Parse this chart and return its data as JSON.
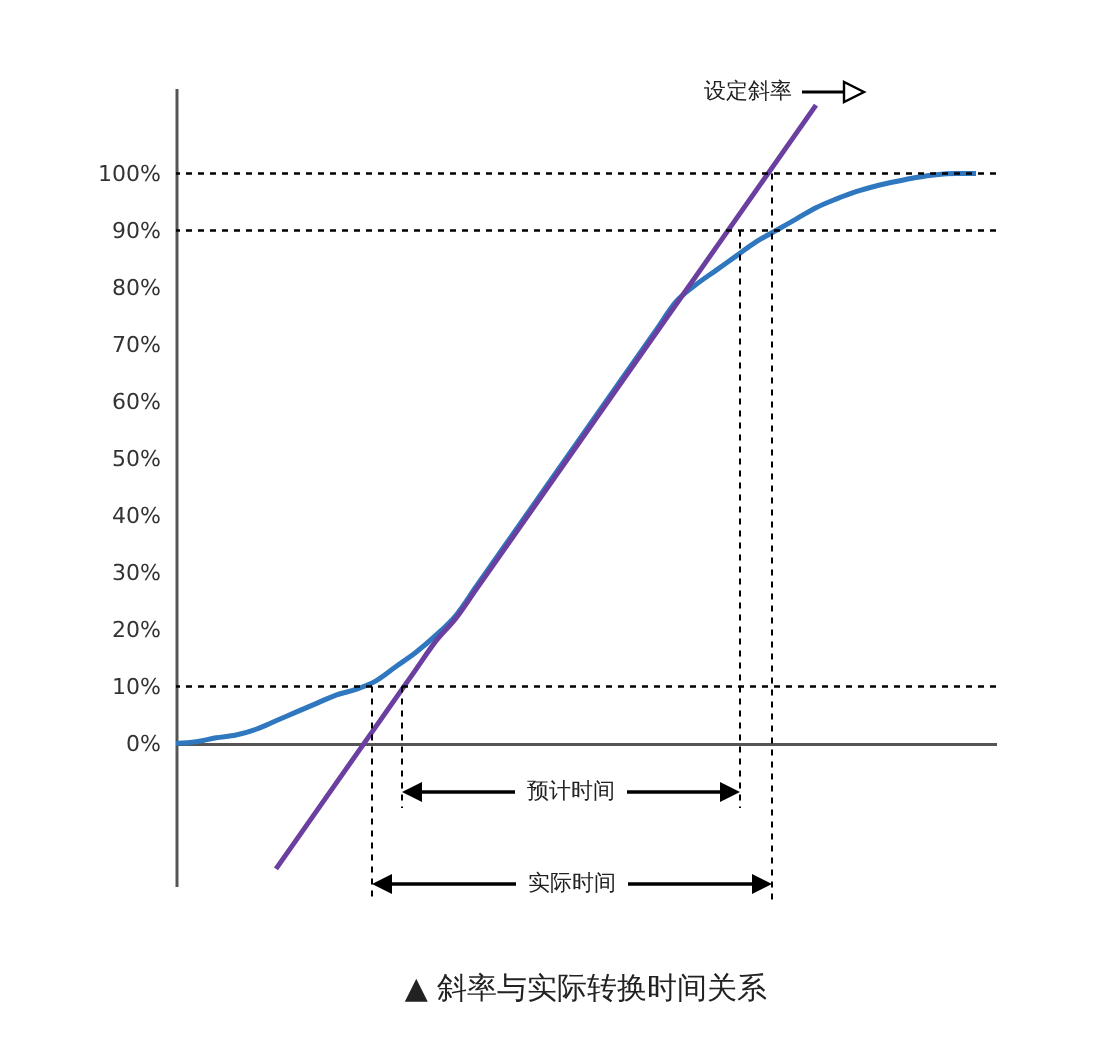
{
  "chart_data": {
    "type": "line",
    "title": "▲ 斜率与实际转换时间关系",
    "categories": [
      null,
      null,
      null,
      null,
      null,
      null,
      null,
      null,
      null,
      null,
      null,
      null,
      null,
      null,
      null,
      null,
      null,
      null,
      null,
      null,
      null,
      null,
      null,
      null,
      null,
      null,
      null,
      null,
      null,
      null,
      null,
      null,
      null,
      null,
      null,
      null,
      null,
      null,
      null,
      null,
      null
    ],
    "series": [
      {
        "color": "#2f77bf",
        "values": [
          0,
          0.3,
          1,
          1.5,
          2.5,
          4,
          5.5,
          7,
          8.5,
          9.5,
          11,
          13.5,
          16,
          19,
          22.5,
          27.5,
          32.5,
          37.5,
          42.5,
          47.5,
          52.5,
          57.5,
          62.5,
          67.5,
          72.5,
          77.5,
          80.5,
          83,
          85.5,
          88,
          90,
          92,
          94,
          95.5,
          96.8,
          97.8,
          98.6,
          99.3,
          99.8,
          100,
          100
        ]
      },
      {
        "color": "#6a3fa0",
        "values": [
          null,
          null,
          null,
          null,
          null,
          -22,
          -17,
          -12,
          -7,
          -2,
          3,
          8,
          13,
          18,
          22,
          27,
          32,
          37,
          42,
          47,
          52,
          57,
          62,
          67,
          72,
          77,
          82,
          87,
          92,
          97,
          102,
          107,
          112,
          null,
          null,
          null,
          null,
          null,
          null,
          null,
          null
        ]
      }
    ],
    "ylim": [
      -25,
      115
    ],
    "yticks": [
      {
        "value": 0,
        "label": "0%"
      },
      {
        "value": 10,
        "label": "10%"
      },
      {
        "value": 20,
        "label": "20%"
      },
      {
        "value": 30,
        "label": "30%"
      },
      {
        "value": 40,
        "label": "40%"
      },
      {
        "value": 50,
        "label": "50%"
      },
      {
        "value": 60,
        "label": "60%"
      },
      {
        "value": 70,
        "label": "70%"
      },
      {
        "value": 80,
        "label": "80%"
      },
      {
        "value": 90,
        "label": "90%"
      },
      {
        "value": 100,
        "label": "100%"
      }
    ],
    "ref_lines": [
      {
        "axis": "y",
        "value": 100,
        "color": "#000000",
        "line_style": "dotted"
      },
      {
        "axis": "y",
        "value": 90,
        "color": "#000000",
        "line_style": "dotted"
      },
      {
        "axis": "y",
        "value": 10,
        "color": "#000000",
        "line_style": "dotted"
      }
    ],
    "annotations": [
      "设定斜率",
      "预计时间",
      "实际时间"
    ],
    "tick_labels": "y",
    "grid": false,
    "marker": "none"
  }
}
